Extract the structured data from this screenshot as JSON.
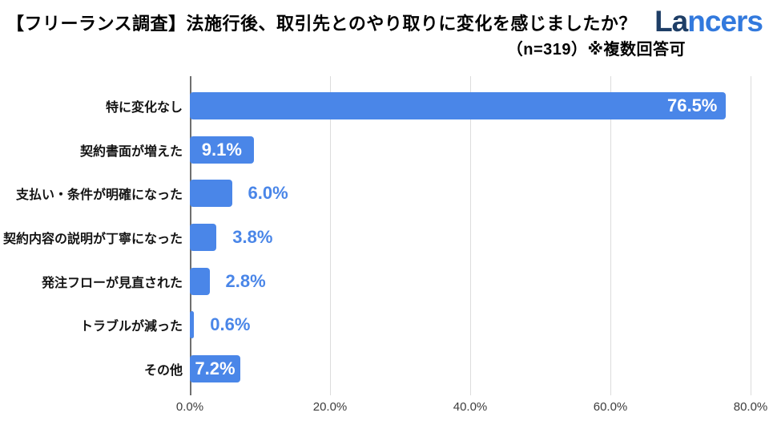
{
  "header": {
    "title": "【フリーランス調査】法施行後、取引先とのやり取りに変化を感じましたか？",
    "subtitle": "（n=319）※複数回答可",
    "logo_dark": "La",
    "logo_light": "ncers",
    "logo_color_dark": "#1e3e66",
    "logo_color_light": "#3279dd"
  },
  "chart_data": {
    "type": "bar",
    "orientation": "horizontal",
    "title": "【フリーランス調査】法施行後、取引先とのやり取りに変化を感じましたか？",
    "note": "（n=319）※複数回答可",
    "categories": [
      "特に変化なし",
      "契約書面が増えた",
      "支払い・条件が明確になった",
      "契約内容の説明が丁寧になった",
      "発注フローが見直された",
      "トラブルが減った",
      "その他"
    ],
    "values": [
      76.5,
      9.1,
      6.0,
      3.8,
      2.8,
      0.6,
      7.2
    ],
    "value_labels": [
      "76.5%",
      "9.1%",
      "6.0%",
      "3.8%",
      "2.8%",
      "0.6%",
      "7.2%"
    ],
    "label_placement": [
      "inside-right",
      "inside-center",
      "outside",
      "outside",
      "outside",
      "outside",
      "inside-center"
    ],
    "x_ticks": [
      0,
      20,
      40,
      60,
      80
    ],
    "x_tick_labels": [
      "0.0%",
      "20.0%",
      "40.0%",
      "60.0%",
      "80.0%"
    ],
    "xlim": [
      0,
      80
    ],
    "bar_color": "#4a86e8",
    "inside_label_color": "#ffffff",
    "outside_label_color": "#4a86e8",
    "gridline_color": "#dcdcdc",
    "axis_line_color": "#6f6f6f",
    "grid": true,
    "legend": false
  }
}
